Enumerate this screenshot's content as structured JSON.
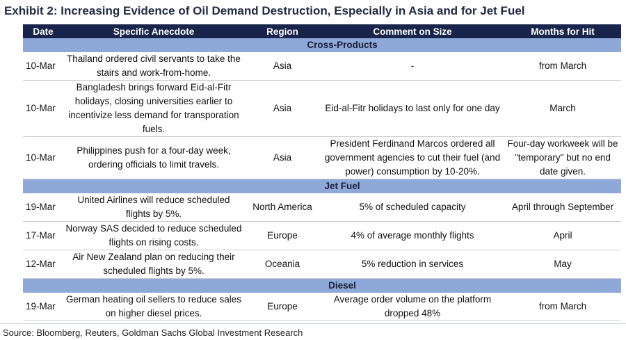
{
  "title": "Exhibit 2: Increasing Evidence of Oil Demand Destruction, Especially in Asia and for Jet Fuel",
  "headers": {
    "date": "Date",
    "anecdote": "Specific Anecdote",
    "region": "Region",
    "comment": "Comment on Size",
    "months": "Months for Hit"
  },
  "sections": [
    {
      "label": "Cross-Products",
      "rows": [
        {
          "date": "10-Mar",
          "anecdote": "Thailand ordered civil servants to take the stairs and work-from-home.",
          "region": "Asia",
          "comment": "-",
          "months": "from March"
        },
        {
          "date": "10-Mar",
          "anecdote": "Bangladesh brings forward Eid-al-Fitr holidays, closing universities earlier to incentivize less demand for transporation fuels.",
          "region": "Asia",
          "comment": "Eid-al-Fitr holidays to last only for one day",
          "months": "March"
        },
        {
          "date": "10-Mar",
          "anecdote": "Philippines push for a four-day week, ordering officials to limit travels.",
          "region": "Asia",
          "comment": "President Ferdinand Marcos ordered all government agencies to cut their fuel (and power) consumption by 10-20%.",
          "months": "Four-day workweek will be \"temporary\" but no end date given."
        }
      ]
    },
    {
      "label": "Jet Fuel",
      "rows": [
        {
          "date": "19-Mar",
          "anecdote": "United Airlines will reduce scheduled flights by 5%.",
          "region": "North America",
          "comment": "5% of scheduled capacity",
          "months": "April through September"
        },
        {
          "date": "17-Mar",
          "anecdote": "Norway SAS decided to reduce scheduled flights on rising costs.",
          "region": "Europe",
          "comment": "4% of average monthly flights",
          "months": "April"
        },
        {
          "date": "12-Mar",
          "anecdote": "Air New Zealand plan on reducing their scheduled flights by 5%.",
          "region": "Oceania",
          "comment": "5% reduction in services",
          "months": "May"
        }
      ]
    },
    {
      "label": "Diesel",
      "rows": [
        {
          "date": "19-Mar",
          "anecdote": "German heating oil sellers to reduce sales on higher diesel prices.",
          "region": "Europe",
          "comment": "Average order volume on the platform dropped 48%",
          "months": "from March"
        }
      ]
    }
  ],
  "source": "Source: Bloomberg, Reuters, Goldman Sachs Global Investment Research"
}
